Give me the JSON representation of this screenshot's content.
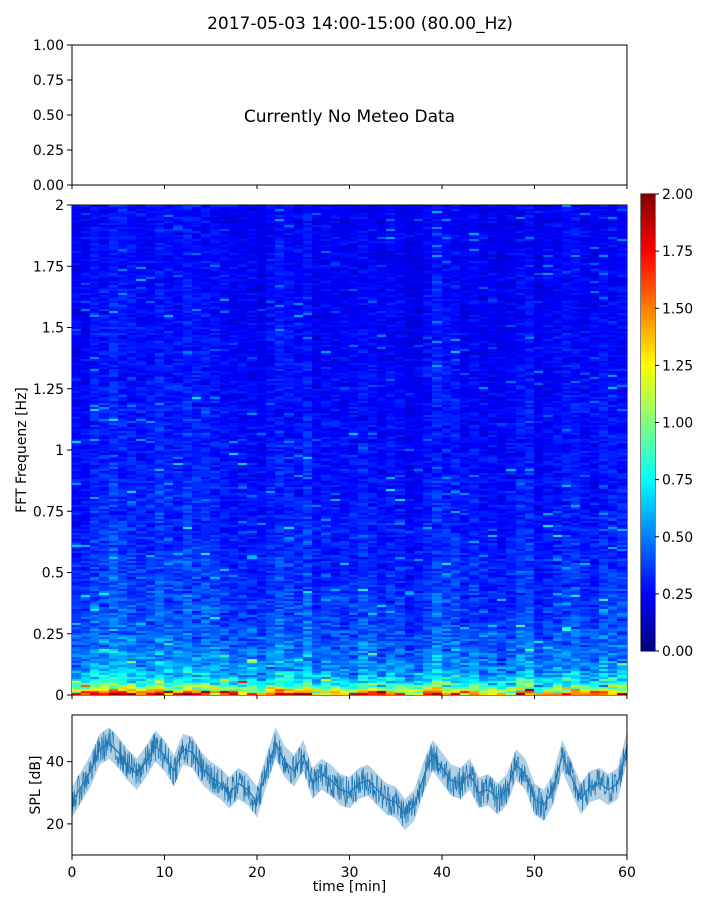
{
  "title": "2017-05-03 14:00-15:00 (80.00_Hz)",
  "chart_data": [
    {
      "type": "line",
      "title": "",
      "message": "Currently No Meteo Data",
      "xlim": [
        0,
        60
      ],
      "ylim": [
        0,
        1
      ],
      "yticks": [
        "0.00",
        "0.25",
        "0.50",
        "0.75",
        "1.00"
      ],
      "series": []
    },
    {
      "type": "heatmap",
      "xlim": [
        0,
        60
      ],
      "ylim": [
        0,
        2
      ],
      "ylabel": "FFT Frequenz [Hz]",
      "yticks": [
        "0",
        "0.25",
        "0.5",
        "0.75",
        "1",
        "1.25",
        "1.5",
        "1.75",
        "2"
      ],
      "colormap": "jet",
      "colorbar": {
        "range": [
          0,
          2
        ],
        "ticks": [
          "0.00",
          "0.25",
          "0.50",
          "0.75",
          "1.00",
          "1.25",
          "1.50",
          "1.75",
          "2.00"
        ]
      },
      "typical_level_by_frequency": {
        "freq_hz": [
          0.0,
          0.01,
          0.03,
          0.06,
          0.1,
          0.2,
          0.3,
          0.5,
          0.75,
          1.0,
          1.5,
          2.0
        ],
        "level": [
          1.9,
          1.5,
          1.0,
          0.75,
          0.6,
          0.48,
          0.42,
          0.36,
          0.32,
          0.3,
          0.27,
          0.26
        ]
      }
    },
    {
      "type": "line",
      "xlabel": "time [min]",
      "ylabel": "SPL [dB]",
      "xlim": [
        0,
        60
      ],
      "ylim": [
        10,
        55
      ],
      "xticks": [
        "0",
        "10",
        "20",
        "30",
        "40",
        "50",
        "60"
      ],
      "yticks": [
        "20",
        "40"
      ],
      "series": [
        {
          "color": "#1f77b4",
          "x": [
            0,
            1,
            2,
            3,
            4,
            5,
            6,
            7,
            8,
            9,
            10,
            11,
            12,
            13,
            14,
            15,
            16,
            17,
            18,
            19,
            20,
            21,
            22,
            23,
            24,
            25,
            26,
            27,
            28,
            29,
            30,
            31,
            32,
            33,
            34,
            35,
            36,
            37,
            38,
            39,
            40,
            41,
            42,
            43,
            44,
            45,
            46,
            47,
            48,
            49,
            50,
            51,
            52,
            53,
            54,
            55,
            56,
            57,
            58,
            59,
            60
          ],
          "values": [
            27,
            32,
            37,
            44,
            46,
            43,
            39,
            36,
            40,
            45,
            42,
            37,
            44,
            43,
            38,
            35,
            33,
            30,
            33,
            31,
            27,
            37,
            46,
            40,
            37,
            42,
            33,
            36,
            34,
            31,
            30,
            33,
            34,
            31,
            28,
            27,
            23,
            26,
            35,
            42,
            38,
            34,
            33,
            36,
            30,
            31,
            28,
            31,
            39,
            36,
            28,
            26,
            31,
            42,
            35,
            28,
            32,
            33,
            31,
            33,
            45
          ],
          "spread": [
            5,
            5,
            5,
            5,
            5,
            5,
            5,
            5,
            5,
            5,
            5,
            5,
            5,
            5,
            5,
            5,
            5,
            5,
            5,
            5,
            5,
            5,
            5,
            5,
            5,
            5,
            5,
            5,
            5,
            5,
            5,
            5,
            5,
            5,
            5,
            5,
            5,
            5,
            5,
            5,
            5,
            5,
            5,
            5,
            5,
            5,
            5,
            5,
            5,
            5,
            5,
            5,
            5,
            5,
            5,
            5,
            5,
            5,
            5,
            5,
            5
          ]
        }
      ]
    }
  ]
}
